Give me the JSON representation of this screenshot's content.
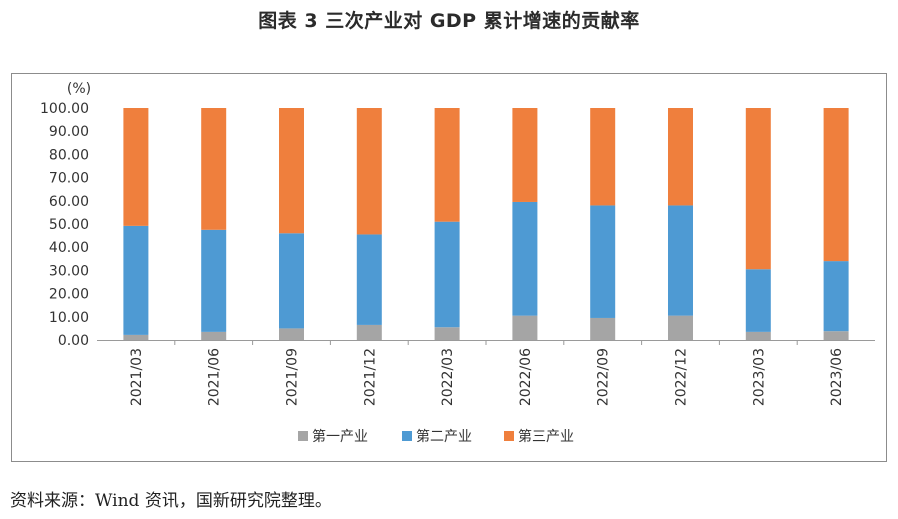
{
  "header": {
    "title": "图表 3 三次产业对 GDP 累计增速的贡献率"
  },
  "footer": {
    "source": "资料来源：Wind 资讯，国新研究院整理。"
  },
  "chart_data": {
    "type": "bar",
    "stacked": true,
    "title": "图表 3 三次产业对 GDP 累计增速的贡献率",
    "ylabel": "(%)",
    "ylim": [
      0,
      100
    ],
    "yticks": [
      "0.00",
      "10.00",
      "20.00",
      "30.00",
      "40.00",
      "50.00",
      "60.00",
      "70.00",
      "80.00",
      "90.00",
      "100.00"
    ],
    "categories": [
      "2021/03",
      "2021/06",
      "2021/09",
      "2021/12",
      "2022/03",
      "2022/06",
      "2022/09",
      "2022/12",
      "2023/03",
      "2023/06"
    ],
    "series": [
      {
        "name": "第一产业",
        "color": "#a5a5a5",
        "values": [
          2.2,
          3.5,
          5.0,
          6.5,
          5.5,
          10.5,
          9.5,
          10.5,
          3.5,
          3.8
        ]
      },
      {
        "name": "第二产业",
        "color": "#4e9ad3",
        "values": [
          47.0,
          44.0,
          41.0,
          39.0,
          45.5,
          49.0,
          48.5,
          47.5,
          27.0,
          30.2
        ]
      },
      {
        "name": "第三产业",
        "color": "#ef7f3d",
        "values": [
          50.8,
          52.5,
          54.0,
          54.5,
          49.0,
          40.5,
          42.0,
          42.0,
          69.5,
          66.0
        ]
      }
    ],
    "legend_position": "bottom",
    "grid": false
  }
}
